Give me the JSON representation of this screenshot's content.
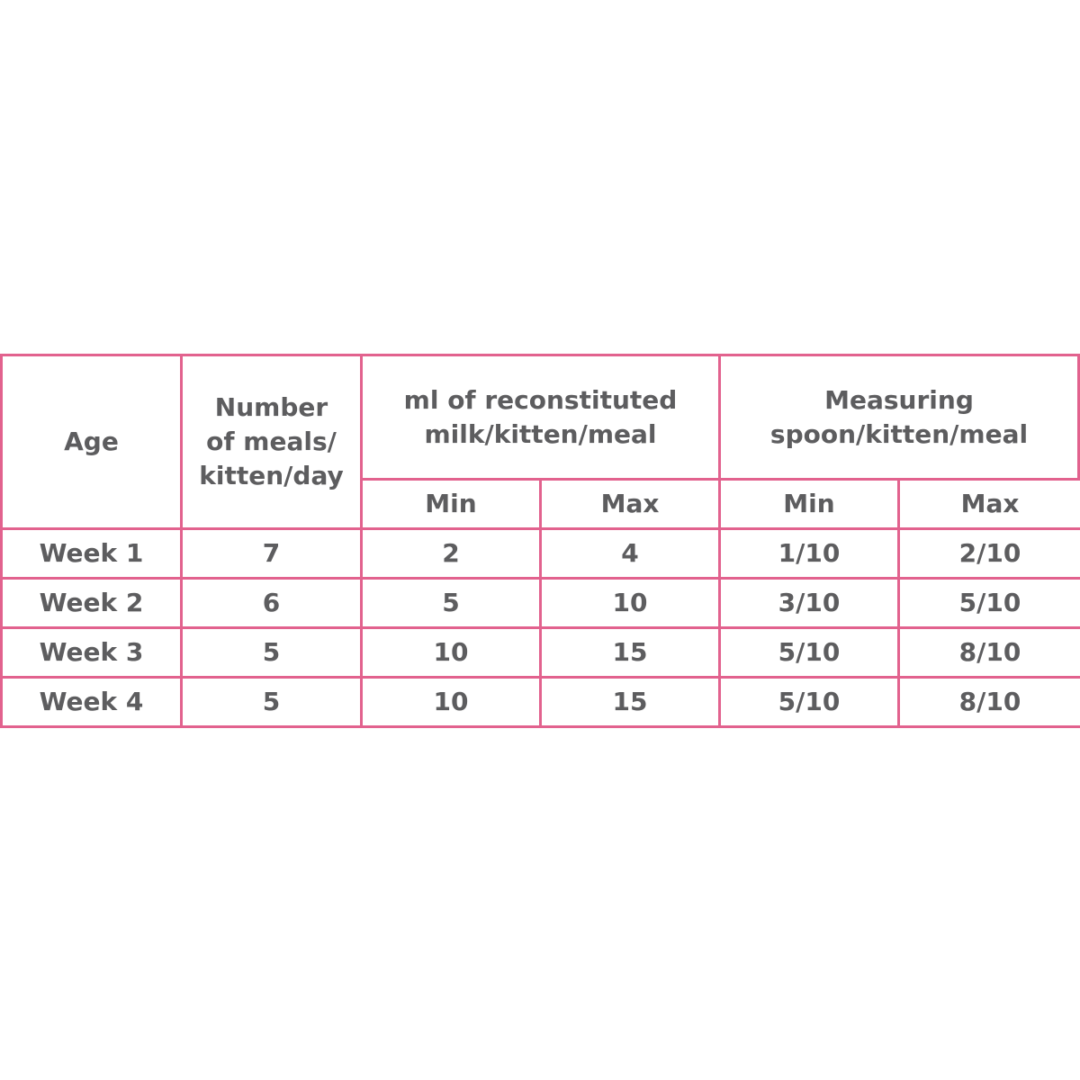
{
  "table": {
    "header": {
      "age": "Age",
      "meals": [
        "Number",
        "of meals/",
        "kitten/day"
      ],
      "milk": [
        "ml of reconstituted",
        "milk/kitten/meal"
      ],
      "spoon": [
        "Measuring",
        "spoon/kitten/meal"
      ],
      "sub": [
        "Min",
        "Max",
        "Min",
        "Max"
      ]
    },
    "rows": [
      [
        "Week 1",
        7,
        2,
        4,
        "1/10",
        "2/10"
      ],
      [
        "Week 2",
        6,
        5,
        10,
        "3/10",
        "5/10"
      ],
      [
        "Week 3",
        5,
        10,
        15,
        "5/10",
        "8/10"
      ],
      [
        "Week 4",
        5,
        10,
        15,
        "5/10",
        "8/10"
      ]
    ]
  }
}
